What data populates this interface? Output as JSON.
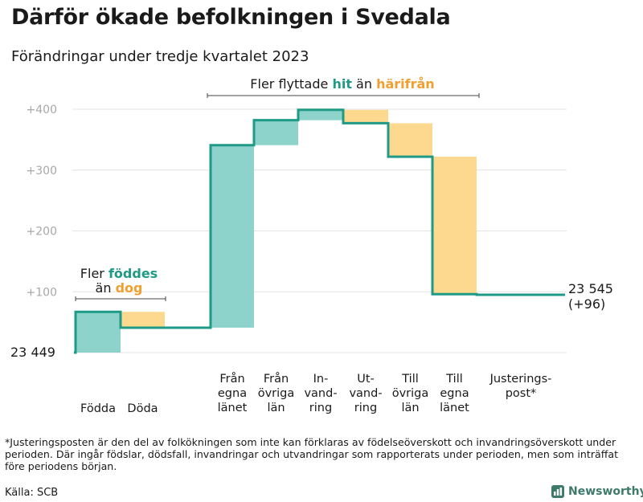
{
  "title": "Därför ökade befolkningen i Svedala",
  "subtitle": "Förändringar under tredje kvartalet 2023",
  "footnote": "*Justeringsposten är den del av folkökningen som inte kan förklaras av födelseöverskott och invandringsöverskott under perioden. Där ingår födslar, dödsfall, invandringar och utvandringar som rapporterats under perioden, men som inträffat före periodens början.",
  "source": "Källa: SCB",
  "logo": {
    "text": "Newsworthy",
    "icon": "newsworthy-chart-icon"
  },
  "colors": {
    "teal": "#8ed3cb",
    "orange": "#fcd98e",
    "line": "#1f9a86",
    "teal_text": "#1f9a86",
    "orange_text": "#f0a030",
    "grid": "#e4e4e4",
    "tick": "#a8a8a8"
  },
  "chart_data": {
    "type": "waterfall",
    "title": "Därför ökade befolkningen i Svedala",
    "subtitle": "Förändringar under tredje kvartalet 2023",
    "start_value": 23449,
    "start_label": "23  449",
    "end_value": 23545,
    "end_label": "23 545",
    "end_change_label": "(+96)",
    "y_unit": "change from start",
    "ylim": [
      0,
      420
    ],
    "yticks": [
      100,
      200,
      300,
      400
    ],
    "ytick_labels": [
      "+100",
      "+200",
      "+300",
      "+400"
    ],
    "categories": [
      {
        "label": "Födda",
        "value": 67,
        "color": "teal"
      },
      {
        "label": "Döda",
        "value": -26,
        "color": "orange"
      },
      {
        "label": "Från egna länet",
        "value": 300,
        "color": "teal"
      },
      {
        "label": "Från övriga län",
        "value": 41,
        "color": "teal"
      },
      {
        "label": "In-vandring",
        "value": 17,
        "color": "teal"
      },
      {
        "label": "Ut-vandring",
        "value": -22,
        "color": "orange"
      },
      {
        "label": "Till övriga län",
        "value": -55,
        "color": "orange"
      },
      {
        "label": "Till egna länet",
        "value": -226,
        "color": "orange"
      },
      {
        "label": "Justerings-post*",
        "value": -1,
        "color": "none"
      }
    ],
    "x_tick_lines": [
      [
        "Födda"
      ],
      [
        "Döda"
      ],
      [
        "Från",
        "egna",
        "länet"
      ],
      [
        "Från",
        "övriga",
        "län"
      ],
      [
        "In-",
        "vand-",
        "ring"
      ],
      [
        "Ut-",
        "vand-",
        "ring"
      ],
      [
        "Till",
        "övriga",
        "län"
      ],
      [
        "Till",
        "egna",
        "länet"
      ],
      [
        "Justerings-",
        "post*"
      ]
    ],
    "annotations": [
      {
        "lines": [
          [
            "Fler ",
            "dark"
          ],
          [
            "föddes",
            "teal"
          ]
        ],
        "line2": [
          [
            "än ",
            "dark"
          ],
          [
            "dog",
            "orange"
          ]
        ],
        "from": 0,
        "to": 1
      },
      {
        "lines": [
          [
            "Fler flyttade ",
            "dark"
          ],
          [
            "hit",
            "teal"
          ],
          [
            " än ",
            "dark"
          ],
          [
            "härifrån",
            "orange"
          ]
        ],
        "from": 2,
        "to": 7
      }
    ]
  }
}
